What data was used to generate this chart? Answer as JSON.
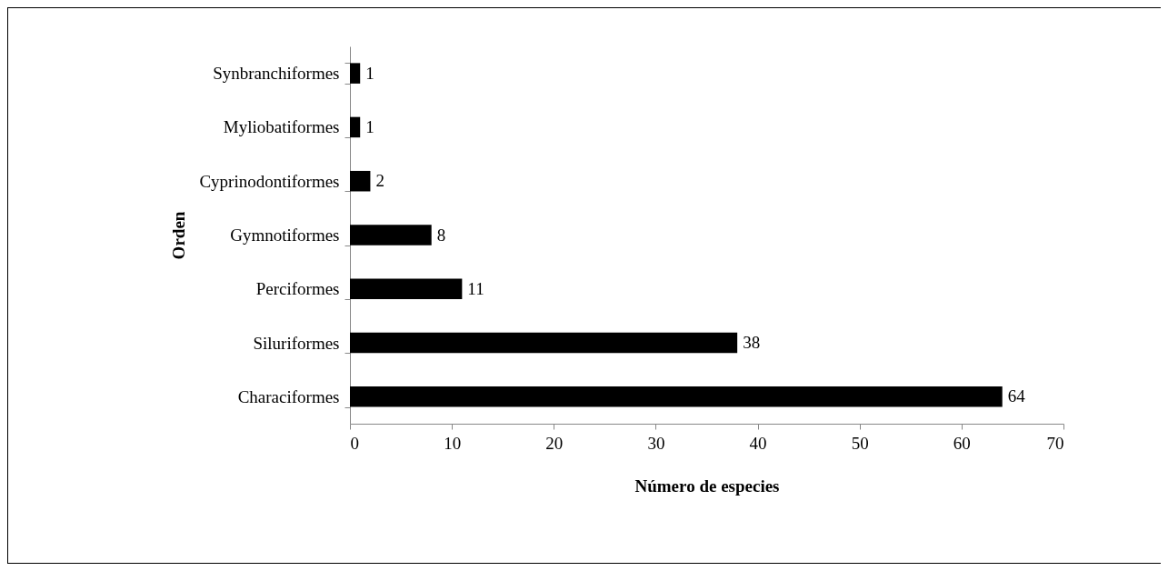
{
  "chart_data": {
    "type": "bar",
    "orientation": "horizontal",
    "xlabel": "Número de especies",
    "ylabel": "Orden",
    "categories": [
      "Synbranchiformes",
      "Myliobatiformes",
      "Cyprinodontiformes",
      "Gymnotiformes",
      "Perciformes",
      "Siluriformes",
      "Characiformes"
    ],
    "values": [
      1,
      1,
      2,
      8,
      11,
      38,
      64
    ],
    "color": "#000000",
    "xlim": [
      0,
      70
    ],
    "xticks": [
      0,
      10,
      20,
      30,
      40,
      50,
      60,
      70
    ],
    "grid": false,
    "data_labels": true
  }
}
